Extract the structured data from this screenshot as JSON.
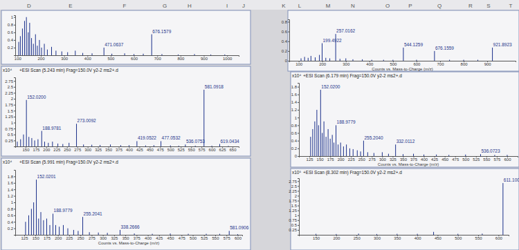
{
  "sheet": {
    "columns": [
      "D",
      "E",
      "F",
      "G",
      "H",
      "I",
      "J",
      "K",
      "L",
      "M",
      "N",
      "O",
      "P",
      "Q",
      "R",
      "S",
      "T"
    ]
  },
  "chart_data": [
    {
      "type": "bar",
      "color": "#1a2f8a",
      "x": [
        105,
        112,
        121,
        130,
        138,
        146,
        152,
        160,
        168,
        177,
        185,
        194,
        203,
        215,
        228,
        246,
        265,
        290,
        315,
        348,
        380,
        420,
        471.0637,
        505,
        560,
        600,
        640,
        676.1579,
        720,
        790,
        860,
        930,
        990
      ],
      "values": [
        0.35,
        0.5,
        0.7,
        0.9,
        1.0,
        0.6,
        0.85,
        0.45,
        0.3,
        0.55,
        0.25,
        0.4,
        0.2,
        0.3,
        0.15,
        0.22,
        0.12,
        0.1,
        0.08,
        0.12,
        0.06,
        0.05,
        0.2,
        0.04,
        0.05,
        0.03,
        0.04,
        0.55,
        0.03,
        0.02,
        0.03,
        0.02,
        0.02
      ],
      "xlim": [
        90,
        1050
      ],
      "ylim": [
        0,
        1.05
      ],
      "xticks": [
        100,
        200,
        300,
        400,
        500,
        600,
        700,
        800,
        900,
        1000
      ],
      "yticks": [
        0.2,
        0.4,
        0.6,
        0.8,
        1
      ],
      "annotations": [
        {
          "text": "471.0637",
          "x": 471.0637,
          "y": 0.2
        },
        {
          "text": "676.1579",
          "x": 676.1579,
          "y": 0.55
        }
      ]
    },
    {
      "type": "bar",
      "color": "#1a2f8a",
      "x_label": "Counts vs. Mass-to-Charge (m/z)",
      "x": [
        110,
        125,
        140,
        152,
        170,
        188,
        199.4922,
        215,
        232,
        257.0162,
        275,
        300,
        330,
        370,
        410,
        460,
        500,
        544.1259,
        600,
        676.1559,
        740,
        800,
        860,
        921.8923
      ],
      "values": [
        0.05,
        0.08,
        0.06,
        0.1,
        0.07,
        0.12,
        0.36,
        0.06,
        0.05,
        0.55,
        0.04,
        0.05,
        0.03,
        0.03,
        0.02,
        0.02,
        0.02,
        0.27,
        0.02,
        0.2,
        0.02,
        0.02,
        0.02,
        0.27
      ],
      "xlim": [
        60,
        1020
      ],
      "ylim": [
        0,
        0.85
      ],
      "xticks": [
        100,
        200,
        300,
        400,
        500,
        600,
        700,
        800,
        900
      ],
      "yticks": [
        0,
        0.2,
        0.4,
        0.6,
        0.8
      ],
      "annotations": [
        {
          "text": "257.0162",
          "x": 257.0162,
          "y": 0.55
        },
        {
          "text": "199.4922",
          "x": 199.4922,
          "y": 0.36
        },
        {
          "text": "544.1259",
          "x": 544.1259,
          "y": 0.27
        },
        {
          "text": "676.1559",
          "x": 676.1559,
          "y": 0.2
        },
        {
          "text": "921.8923",
          "x": 921.8923,
          "y": 0.27
        }
      ]
    },
    {
      "type": "bar",
      "color": "#1a2f8a",
      "title": "+ESI Scan (5.243 min) Frag=150.0V y2-2 ms2+.d",
      "y_label": "x10⁴",
      "x": [
        130,
        138,
        145,
        152.02,
        158,
        165,
        172,
        180,
        188.9781,
        196,
        205,
        215,
        228,
        240,
        255,
        273.0092,
        290,
        310,
        330,
        355,
        380,
        400,
        419.0522,
        440,
        460,
        477.0532,
        500,
        520,
        536.0753,
        560,
        581.0918,
        600,
        619.0434,
        640
      ],
      "values": [
        0.2,
        0.3,
        0.5,
        1.95,
        0.4,
        0.35,
        0.25,
        0.3,
        0.65,
        0.2,
        0.15,
        0.2,
        0.12,
        0.1,
        0.15,
        0.95,
        0.08,
        0.07,
        0.06,
        0.08,
        0.05,
        0.05,
        0.22,
        0.04,
        0.05,
        0.22,
        0.04,
        0.03,
        0.08,
        0.03,
        2.38,
        0.03,
        0.1,
        0.02
      ],
      "xlim": [
        125,
        665
      ],
      "ylim": [
        0,
        2.9
      ],
      "xticks": [
        150,
        175,
        200,
        225,
        250,
        275,
        300,
        325,
        350,
        375,
        400,
        425,
        450,
        475,
        500,
        525,
        550,
        575,
        600,
        625,
        650
      ],
      "yticks": [
        0.25,
        0.5,
        0.75,
        1,
        1.25,
        1.5,
        1.75,
        2,
        2.25,
        2.5,
        2.75
      ],
      "annotations": [
        {
          "text": "152.0200",
          "x": 152.02,
          "y": 1.95
        },
        {
          "text": "188.9781",
          "x": 188.9781,
          "y": 0.65
        },
        {
          "text": "273.0092",
          "x": 273.0092,
          "y": 0.95
        },
        {
          "text": "419.0522",
          "x": 419.0522,
          "y": 0.22
        },
        {
          "text": "477.0532",
          "x": 477.0532,
          "y": 0.22
        },
        {
          "text": "536.0753",
          "x": 536.0753,
          "y": 0.08
        },
        {
          "text": "581.0918",
          "x": 581.0918,
          "y": 2.38
        },
        {
          "text": "619.0434",
          "x": 619.0434,
          "y": 0.1
        }
      ]
    },
    {
      "type": "bar",
      "color": "#1a2f8a",
      "title": "+ESI Scan (6.179 min) Frag=150.0V y2-2 ms2+.d",
      "y_label": "x10⁴",
      "x_label": "Counts vs. Mass-to-Charge (m/z)",
      "x": [
        128,
        133,
        138,
        143,
        147,
        152.02,
        156,
        160,
        165,
        170,
        175,
        180,
        184,
        188.9779,
        194,
        200,
        207,
        214,
        222,
        230,
        240,
        248,
        255.204,
        265,
        280,
        300,
        315,
        332.0112,
        350,
        375,
        400,
        430,
        460,
        500,
        536.0723,
        570,
        600
      ],
      "values": [
        0.5,
        0.7,
        0.9,
        1.2,
        0.8,
        1.72,
        0.6,
        0.9,
        0.5,
        0.7,
        0.45,
        0.55,
        0.35,
        0.8,
        0.3,
        0.35,
        0.25,
        0.3,
        0.2,
        0.18,
        0.15,
        0.12,
        0.4,
        0.1,
        0.08,
        0.1,
        0.06,
        0.3,
        0.05,
        0.06,
        0.04,
        0.04,
        0.03,
        0.04,
        0.05,
        0.03,
        0.03
      ],
      "xlim": [
        100,
        625
      ],
      "ylim": [
        0,
        1.9
      ],
      "xticks": [
        125,
        150,
        175,
        200,
        225,
        250,
        275,
        300,
        325,
        350,
        375,
        400,
        425,
        450,
        475,
        500,
        525,
        550,
        575,
        600
      ],
      "yticks": [
        0,
        0.2,
        0.4,
        0.6,
        0.8,
        1,
        1.2,
        1.4,
        1.6,
        1.8
      ],
      "annotations": [
        {
          "text": "152.0200",
          "x": 152.02,
          "y": 1.72
        },
        {
          "text": "188.9779",
          "x": 188.9779,
          "y": 0.8
        },
        {
          "text": "255.2040",
          "x": 255.204,
          "y": 0.4
        },
        {
          "text": "332.0112",
          "x": 332.0112,
          "y": 0.3
        },
        {
          "text": "536.0723",
          "x": 536.0723,
          "y": 0.05
        }
      ]
    },
    {
      "type": "bar",
      "color": "#1a2f8a",
      "title": "+ESI Scan (5.991 min) Frag=150.0V y2-2 ms2+.d",
      "y_label": "x10⁴",
      "x_label": "Counts vs. Mass-to-Charge (m/z)",
      "x": [
        128,
        135,
        141,
        146,
        152.0201,
        157,
        162,
        168,
        175,
        182,
        188.9779,
        195,
        203,
        212,
        222,
        235,
        245,
        255.2041,
        270,
        290,
        310,
        338.2666,
        370,
        410,
        450,
        490,
        530,
        560,
        581.0906,
        600
      ],
      "values": [
        0.4,
        0.6,
        0.8,
        1.0,
        1.7,
        0.5,
        0.7,
        0.45,
        0.5,
        0.3,
        0.65,
        0.3,
        0.25,
        0.3,
        0.2,
        0.15,
        0.12,
        0.55,
        0.08,
        0.07,
        0.06,
        0.15,
        0.04,
        0.03,
        0.04,
        0.03,
        0.03,
        0.03,
        0.12,
        0.02
      ],
      "xlim": [
        105,
        610
      ],
      "ylim": [
        0,
        2.0
      ],
      "xticks": [
        125,
        150,
        175,
        200,
        225,
        250,
        275,
        300,
        325,
        350,
        375,
        400,
        425,
        450,
        475,
        500,
        525,
        550,
        575,
        600
      ],
      "yticks": [
        0.2,
        0.4,
        0.6,
        0.8,
        1,
        1.2,
        1.4,
        1.6,
        1.8
      ],
      "annotations": [
        {
          "text": "152.0201",
          "x": 152.0201,
          "y": 1.7
        },
        {
          "text": "188.9779",
          "x": 188.9779,
          "y": 0.65
        },
        {
          "text": "255.2041",
          "x": 255.2041,
          "y": 0.55
        },
        {
          "text": "338.2666",
          "x": 338.2666,
          "y": 0.15
        },
        {
          "text": "581.0906",
          "x": 581.0906,
          "y": 0.12
        }
      ]
    },
    {
      "type": "bar",
      "color": "#1a2f8a",
      "title": "+ESI Scan (8.302 min) Frag=150.0V y2-2 ms2+.d",
      "y_label": "x10⁵",
      "x": [
        150,
        200,
        255,
        300,
        350,
        400,
        440,
        500,
        560,
        611.1
      ],
      "values": [
        0.05,
        0.04,
        0.06,
        0.04,
        0.05,
        0.05,
        0.15,
        0.05,
        0.06,
        2.65
      ],
      "xlim": [
        108,
        625
      ],
      "ylim": [
        0,
        2.9
      ],
      "xticks": [
        150,
        200,
        250,
        300,
        350,
        400,
        450,
        500,
        550,
        600
      ],
      "yticks": [
        0.25,
        0.5,
        0.75,
        1,
        1.25,
        1.5,
        1.75,
        2,
        2.25,
        2.5,
        2.75
      ],
      "annotations": [
        {
          "text": "611.100",
          "x": 611.1,
          "y": 2.65
        }
      ]
    }
  ]
}
